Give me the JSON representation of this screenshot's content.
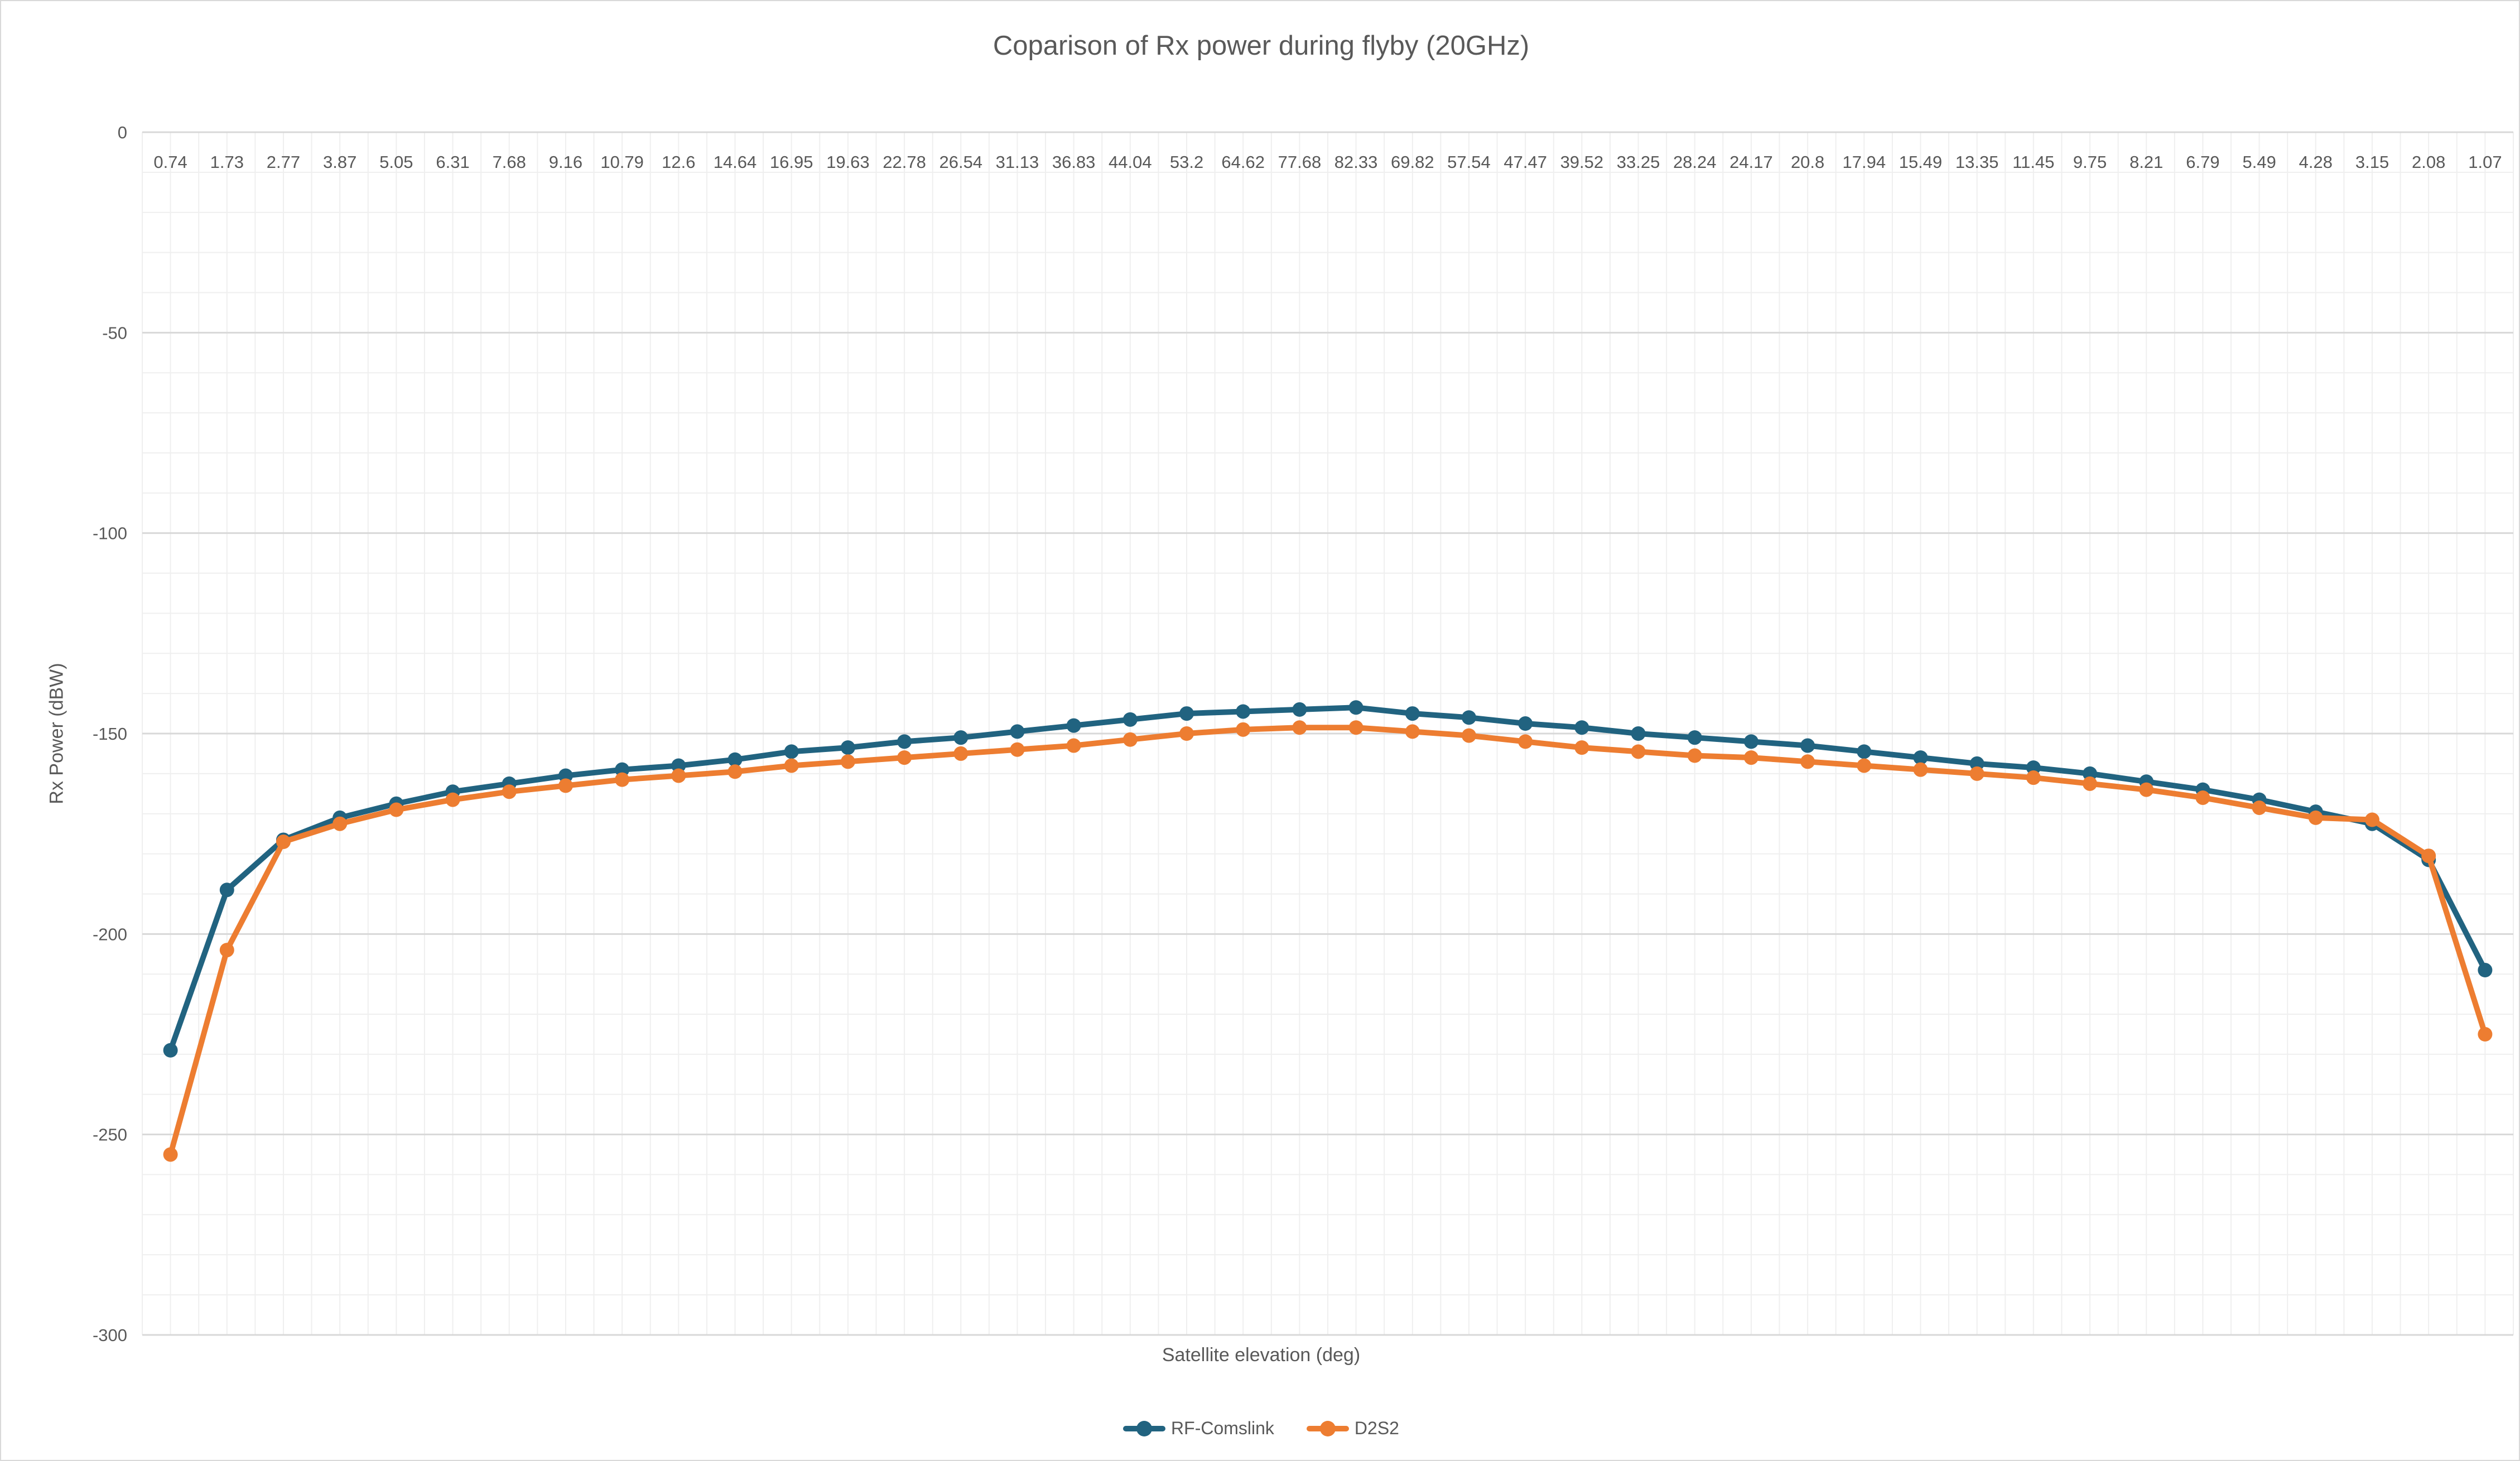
{
  "title": "Coparison of Rx power during flyby (20GHz)",
  "chart_data": {
    "type": "line",
    "title": "Coparison of Rx power during flyby (20GHz)",
    "xlabel": "Satellite elevation (deg)",
    "ylabel": "Rx Power (dBW)",
    "ylim": [
      -300,
      0
    ],
    "y_major_step": 50,
    "y_minor_step": 10,
    "grid": true,
    "legend_position": "bottom",
    "yticks": [
      "0",
      "-50",
      "-100",
      "-150",
      "-200",
      "-250",
      "-300"
    ],
    "categories": [
      "0.74",
      "1.73",
      "2.77",
      "3.87",
      "5.05",
      "6.31",
      "7.68",
      "9.16",
      "10.79",
      "12.6",
      "14.64",
      "16.95",
      "19.63",
      "22.78",
      "26.54",
      "31.13",
      "36.83",
      "44.04",
      "53.2",
      "64.62",
      "77.68",
      "82.33",
      "69.82",
      "57.54",
      "47.47",
      "39.52",
      "33.25",
      "28.24",
      "24.17",
      "20.8",
      "17.94",
      "15.49",
      "13.35",
      "11.45",
      "9.75",
      "8.21",
      "6.79",
      "5.49",
      "4.28",
      "3.15",
      "2.08",
      "1.07"
    ],
    "series": [
      {
        "name": "RF-Comslink",
        "color": "#216380",
        "values": [
          -229,
          -189,
          -176.5,
          -171,
          -167.5,
          -164.5,
          -162.5,
          -160.5,
          -159,
          -158,
          -156.5,
          -154.5,
          -153.5,
          -152,
          -151,
          -149.5,
          -148,
          -146.5,
          -145,
          -144.5,
          -144,
          -143.5,
          -145,
          -146,
          -147.5,
          -148.5,
          -150,
          -151,
          -152,
          -153,
          -154.5,
          -156,
          -157.5,
          -158.5,
          -160,
          -162,
          -164,
          -166.5,
          -169.5,
          -172.5,
          -181.5,
          -209
        ]
      },
      {
        "name": "D2S2",
        "color": "#ED7D31",
        "values": [
          -255,
          -204,
          -177,
          -172.5,
          -169,
          -166.5,
          -164.5,
          -163,
          -161.5,
          -160.5,
          -159.5,
          -158,
          -157,
          -156,
          -155,
          -154,
          -153,
          -151.5,
          -150,
          -149,
          -148.5,
          -148.5,
          -149.5,
          -150.5,
          -152,
          -153.5,
          -154.5,
          -155.5,
          -156,
          -157,
          -158,
          -159,
          -160,
          -161,
          -162.5,
          -164,
          -166,
          -168.5,
          -171,
          -171.5,
          -180.5,
          -225
        ]
      }
    ]
  },
  "colors": {
    "text": "#595959",
    "grid_minor": "#efefef",
    "grid_major": "#d8d8d8",
    "background": "#ffffff",
    "border": "#d9d9d9"
  }
}
